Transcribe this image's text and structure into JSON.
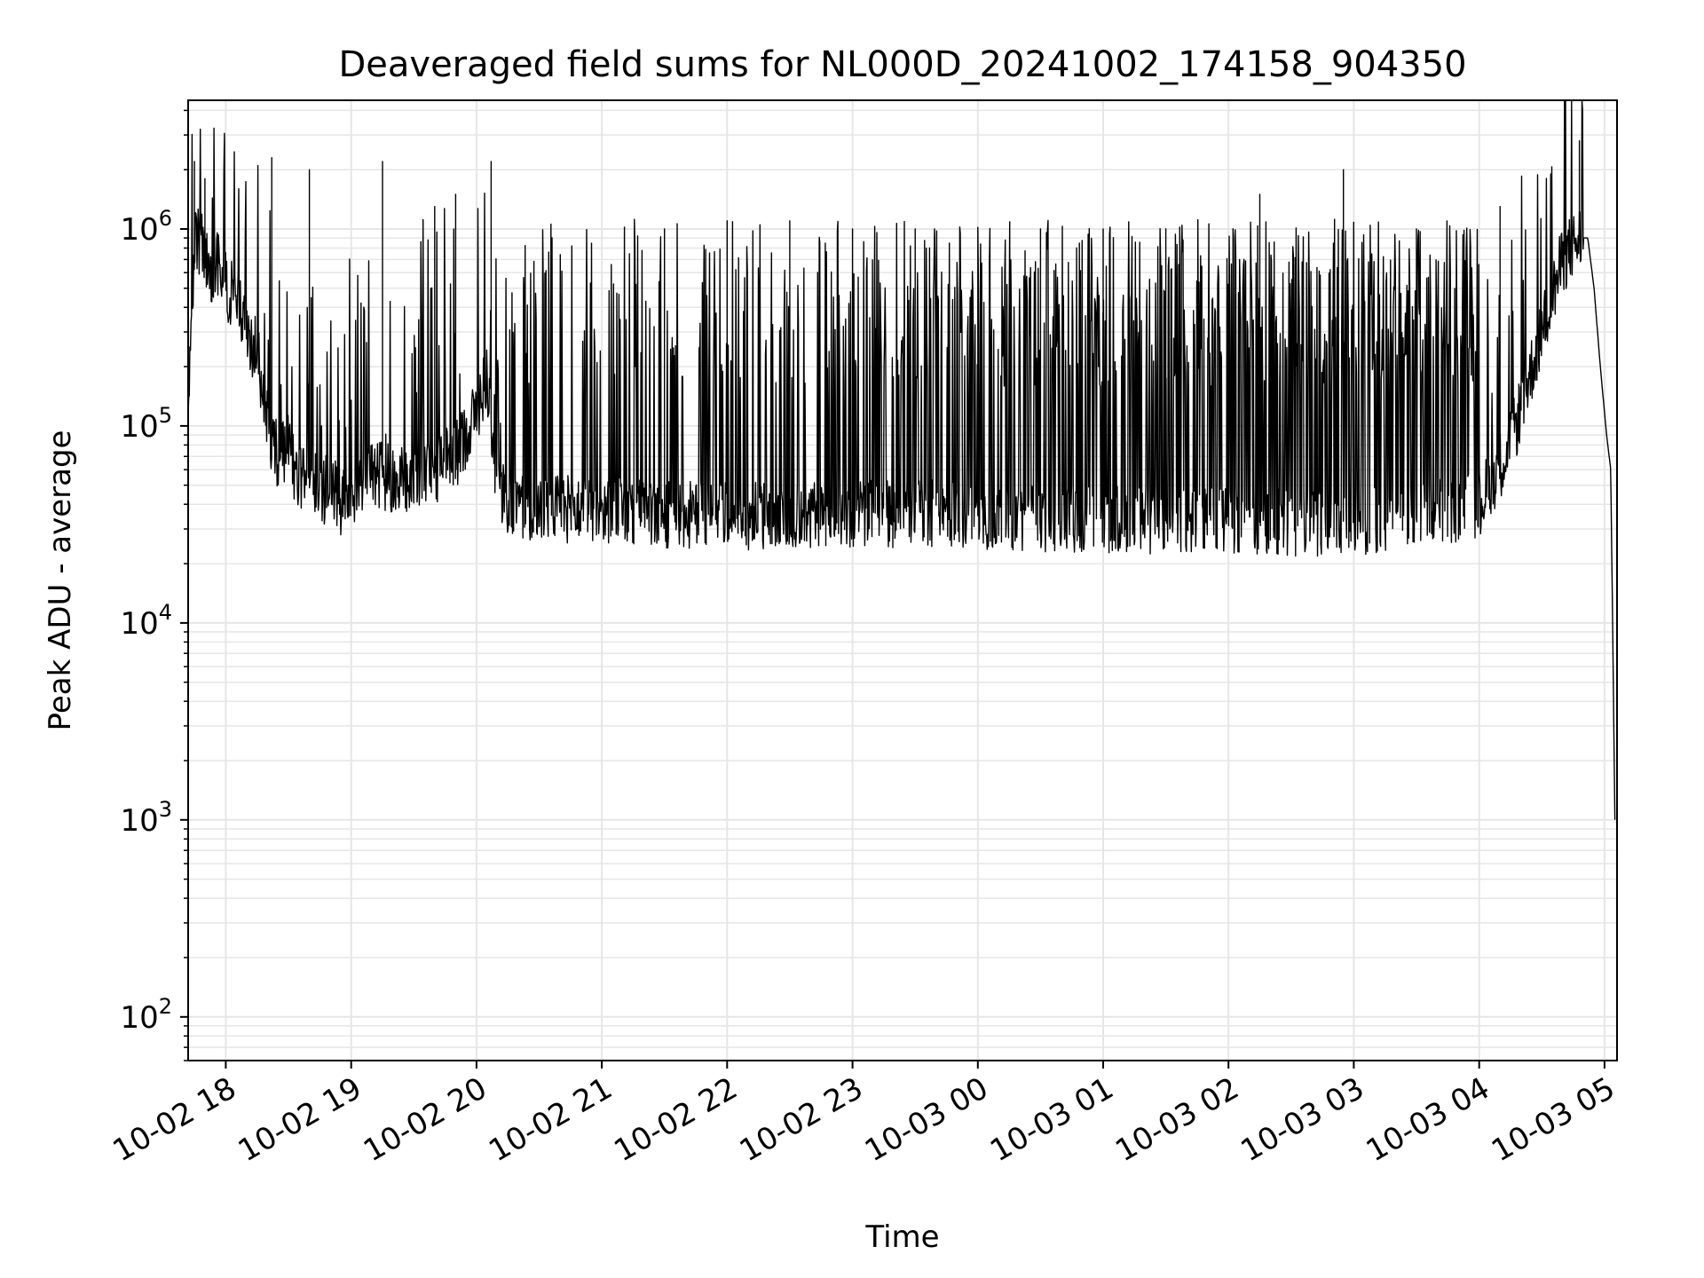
{
  "chart_data": {
    "type": "line",
    "title": "Deaveraged field sums for NL000D_20241002_174158_904350",
    "xlabel": "Time",
    "ylabel": "Peak ADU - average",
    "yscale": "log",
    "xlim": [
      "2024-10-02T17:41:58",
      "2024-10-03T05:06:00"
    ],
    "ylim": [
      60,
      4500000
    ],
    "grid": true,
    "line_color": "#000000",
    "x_ticks": [
      {
        "value": "2024-10-02T18:00",
        "label": "10-02 18"
      },
      {
        "value": "2024-10-02T19:00",
        "label": "10-02 19"
      },
      {
        "value": "2024-10-02T20:00",
        "label": "10-02 20"
      },
      {
        "value": "2024-10-02T21:00",
        "label": "10-02 21"
      },
      {
        "value": "2024-10-02T22:00",
        "label": "10-02 22"
      },
      {
        "value": "2024-10-02T23:00",
        "label": "10-02 23"
      },
      {
        "value": "2024-10-03T00:00",
        "label": "10-03 00"
      },
      {
        "value": "2024-10-03T01:00",
        "label": "10-03 01"
      },
      {
        "value": "2024-10-03T02:00",
        "label": "10-03 02"
      },
      {
        "value": "2024-10-03T03:00",
        "label": "10-03 03"
      },
      {
        "value": "2024-10-03T04:00",
        "label": "10-03 04"
      },
      {
        "value": "2024-10-03T05:00",
        "label": "10-03 05"
      }
    ],
    "y_ticks": [
      {
        "value": 100,
        "base": "10",
        "exp": "2"
      },
      {
        "value": 1000,
        "base": "10",
        "exp": "3"
      },
      {
        "value": 10000,
        "base": "10",
        "exp": "4"
      },
      {
        "value": 100000,
        "base": "10",
        "exp": "5"
      },
      {
        "value": 1000000,
        "base": "10",
        "exp": "6"
      }
    ],
    "series": [
      {
        "x": [
          "2024-10-02T17:42",
          "2024-10-02T17:45",
          "2024-10-02T17:48",
          "2024-10-02T17:51",
          "2024-10-02T17:54",
          "2024-10-02T17:57",
          "2024-10-02T18:00",
          "2024-10-02T18:05",
          "2024-10-02T18:10",
          "2024-10-02T18:15",
          "2024-10-02T18:20",
          "2024-10-02T18:25",
          "2024-10-02T18:30",
          "2024-10-02T18:35",
          "2024-10-02T18:40",
          "2024-10-02T18:45",
          "2024-10-02T18:50",
          "2024-10-02T18:55",
          "2024-10-02T19:00",
          "2024-10-02T19:10",
          "2024-10-02T19:20",
          "2024-10-02T19:30",
          "2024-10-02T19:40",
          "2024-10-02T19:50",
          "2024-10-02T20:00",
          "2024-10-02T20:05",
          "2024-10-02T20:10",
          "2024-10-02T20:15",
          "2024-10-02T20:30",
          "2024-10-02T21:00",
          "2024-10-02T21:30",
          "2024-10-02T22:00",
          "2024-10-02T22:30",
          "2024-10-02T23:00",
          "2024-10-02T23:30",
          "2024-10-03T00:00",
          "2024-10-03T00:30",
          "2024-10-03T01:00",
          "2024-10-03T01:30",
          "2024-10-03T02:00",
          "2024-10-03T02:30",
          "2024-10-03T03:00",
          "2024-10-03T03:30",
          "2024-10-03T04:00",
          "2024-10-03T04:15",
          "2024-10-03T04:30",
          "2024-10-03T04:40",
          "2024-10-03T04:48",
          "2024-10-03T04:52",
          "2024-10-03T04:55",
          "2024-10-03T04:58",
          "2024-10-03T05:01",
          "2024-10-03T05:03",
          "2024-10-03T05:05"
        ],
        "y": [
          120000,
          800000,
          900000,
          650000,
          600000,
          700000,
          500000,
          450000,
          280000,
          250000,
          100000,
          70000,
          80000,
          50000,
          60000,
          45000,
          50000,
          40000,
          45000,
          60000,
          50000,
          55000,
          60000,
          70000,
          120000,
          180000,
          50000,
          40000,
          38000,
          38000,
          35000,
          35000,
          35000,
          36000,
          36000,
          35000,
          34000,
          34000,
          33000,
          33000,
          32000,
          33000,
          34000,
          40000,
          80000,
          300000,
          700000,
          900000,
          900000,
          500000,
          200000,
          90000,
          60000,
          1000
        ],
        "y_spikes": [
          [
            "2024-10-02T17:45",
            2200000
          ],
          [
            "2024-10-02T17:50",
            1800000
          ],
          [
            "2024-10-02T18:22",
            2300000
          ],
          [
            "2024-10-02T18:40",
            2000000
          ],
          [
            "2024-10-02T19:15",
            2200000
          ],
          [
            "2024-10-02T19:40",
            1300000
          ],
          [
            "2024-10-02T19:50",
            1500000
          ],
          [
            "2024-10-02T20:07",
            2200000
          ],
          [
            "2024-10-02T21:30",
            1000000
          ],
          [
            "2024-10-02T22:00",
            1100000
          ],
          [
            "2024-10-02T22:30",
            1100000
          ],
          [
            "2024-10-02T23:00",
            1000000
          ],
          [
            "2024-10-02T23:30",
            1000000
          ],
          [
            "2024-10-03T00:00",
            1000000
          ],
          [
            "2024-10-03T00:30",
            1000000
          ],
          [
            "2024-10-03T01:00",
            1000000
          ],
          [
            "2024-10-03T01:30",
            1000000
          ],
          [
            "2024-10-03T02:15",
            1500000
          ],
          [
            "2024-10-03T02:55",
            2000000
          ],
          [
            "2024-10-03T03:30",
            1000000
          ],
          [
            "2024-10-03T04:10",
            1300000
          ],
          [
            "2024-10-03T04:48",
            2800000
          ]
        ]
      }
    ]
  }
}
